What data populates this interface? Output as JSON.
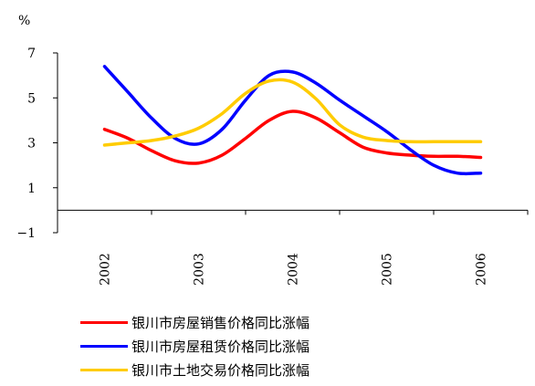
{
  "chart_data": {
    "type": "line",
    "ylabel": "%",
    "ylim": [
      -1,
      7
    ],
    "yticks": [
      "−1",
      "1",
      "3",
      "5",
      "7"
    ],
    "ytick_values": [
      -1,
      1,
      3,
      5,
      7
    ],
    "xlim": [
      2001.5,
      2006.5
    ],
    "categories": [
      "2002",
      "2003",
      "2004",
      "2005",
      "2006"
    ],
    "category_values": [
      2002,
      2003,
      2004,
      2005,
      2006
    ],
    "grid": false,
    "legend_position": "bottom",
    "series": [
      {
        "name": "银川市房屋销售价格同比涨幅",
        "color": "#ff0000",
        "x": [
          2002.0,
          2002.25,
          2002.5,
          2002.75,
          2003.0,
          2003.25,
          2003.5,
          2003.75,
          2004.0,
          2004.25,
          2004.5,
          2004.75,
          2005.0,
          2005.25,
          2005.5,
          2005.75,
          2006.0
        ],
        "y": [
          3.6,
          3.2,
          2.65,
          2.2,
          2.1,
          2.45,
          3.2,
          4.0,
          4.4,
          4.1,
          3.45,
          2.8,
          2.55,
          2.45,
          2.4,
          2.4,
          2.35
        ]
      },
      {
        "name": "银川市房屋租赁价格同比涨幅",
        "color": "#0000ff",
        "x": [
          2002.0,
          2002.25,
          2002.5,
          2002.75,
          2003.0,
          2003.25,
          2003.5,
          2003.75,
          2004.0,
          2004.25,
          2004.5,
          2004.75,
          2005.0,
          2005.25,
          2005.5,
          2005.75,
          2006.0
        ],
        "y": [
          6.4,
          5.25,
          4.1,
          3.2,
          2.95,
          3.6,
          4.9,
          6.0,
          6.15,
          5.65,
          4.9,
          4.2,
          3.5,
          2.7,
          2.0,
          1.65,
          1.65
        ]
      },
      {
        "name": "银川市土地交易价格同比涨幅",
        "color": "#ffcc00",
        "x": [
          2002.0,
          2002.25,
          2002.5,
          2002.75,
          2003.0,
          2003.25,
          2003.5,
          2003.75,
          2004.0,
          2004.25,
          2004.5,
          2004.75,
          2005.0,
          2005.25,
          2005.5,
          2005.75,
          2006.0
        ],
        "y": [
          2.9,
          3.0,
          3.1,
          3.3,
          3.65,
          4.3,
          5.2,
          5.75,
          5.7,
          4.95,
          3.8,
          3.25,
          3.1,
          3.05,
          3.05,
          3.05,
          3.05
        ]
      }
    ]
  }
}
